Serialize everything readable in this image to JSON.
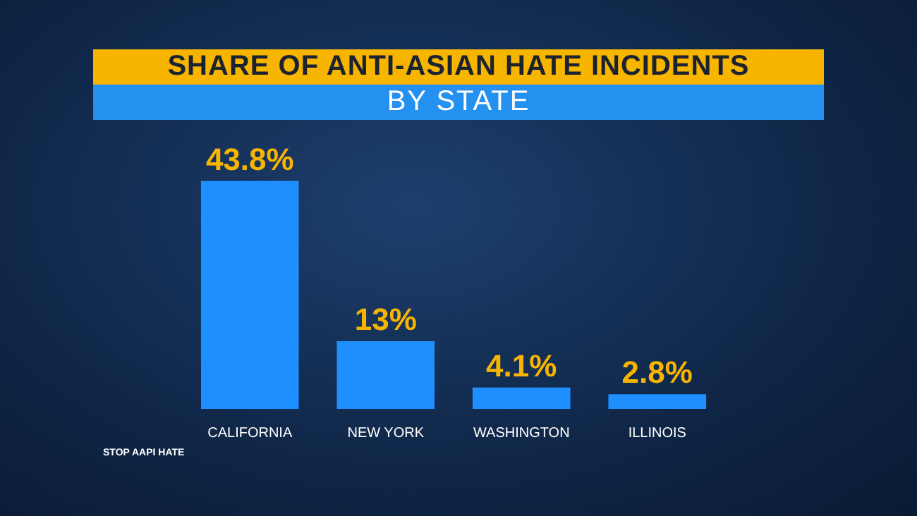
{
  "chart_data": {
    "type": "bar",
    "title": "SHARE OF ANTI-ASIAN HATE INCIDENTS",
    "subtitle": "BY STATE",
    "categories": [
      "CALIFORNIA",
      "NEW YORK",
      "WASHINGTON",
      "ILLINOIS"
    ],
    "values": [
      43.8,
      13,
      4.1,
      2.8
    ],
    "value_labels": [
      "43.8%",
      "13%",
      "4.1%",
      "2.8%"
    ],
    "color": "#1e8fff",
    "annotations": [
      "STOP AAPI HATE"
    ],
    "grid": false,
    "legend": false
  }
}
